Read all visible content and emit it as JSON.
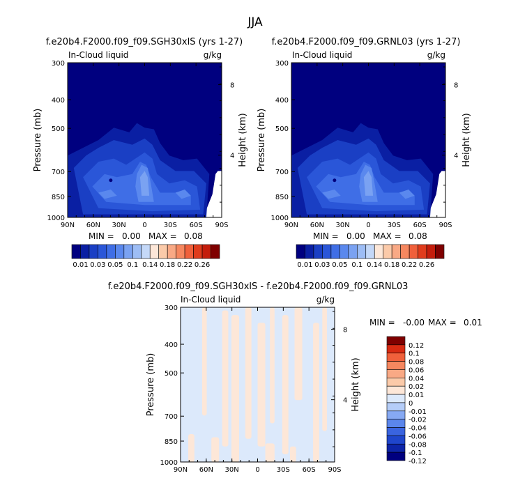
{
  "page_title": "JJA",
  "palettes": {
    "field": [
      "#00007f",
      "#0a1fa3",
      "#1a3fc4",
      "#2a56d8",
      "#3f6ee6",
      "#5a88ee",
      "#7aa2f2",
      "#9dbdf5",
      "#c4d8f8",
      "#fde7d8",
      "#fbcaa9",
      "#f9a985",
      "#f6875f",
      "#f0603b",
      "#e03c1c",
      "#c41d0c",
      "#7f0000"
    ],
    "diff": [
      "#00007f",
      "#0d25a8",
      "#1f46cc",
      "#3a64e0",
      "#5b86ec",
      "#86a9f3",
      "#b5cdf8",
      "#dce9fb",
      "#fde7d8",
      "#fbcaa9",
      "#f9a985",
      "#f6875f",
      "#f0603b",
      "#d82a12",
      "#7f0000"
    ]
  },
  "chart_data": [
    {
      "type": "heatmap",
      "title": "f.e20b4.F2000.f09_f09.SGH30xlS (yrs 1-27)",
      "left_string": "In-Cloud liquid",
      "right_string": "g/kg",
      "ylabel": "Pressure (mb)",
      "ylabel_right": "Height (km)",
      "x_ticks": [
        "90N",
        "60N",
        "30N",
        "0",
        "30S",
        "60S",
        "90S"
      ],
      "x_values": [
        90,
        60,
        30,
        0,
        -30,
        -60,
        -90
      ],
      "y_ticks": [
        "300",
        "400",
        "500",
        "700",
        "850",
        "1000"
      ],
      "y_values": [
        300,
        400,
        500,
        700,
        850,
        1000
      ],
      "y_right_ticks": [
        "8",
        "4"
      ],
      "ylim": [
        1000,
        300
      ],
      "min_label": "MIN =",
      "min_value": "0.00",
      "max_label": "MAX =",
      "max_value": "0.08",
      "colorbar_labels": [
        "0.01",
        "0.03",
        "0.05",
        "0.1",
        "0.14",
        "0.18",
        "0.22",
        "0.26"
      ],
      "colorbar_levels": [
        0.01,
        0.02,
        0.03,
        0.04,
        0.05,
        0.06,
        0.08,
        0.1,
        0.12,
        0.14,
        0.16,
        0.18,
        0.2,
        0.22,
        0.24,
        0.26
      ]
    },
    {
      "type": "heatmap",
      "title": "f.e20b4.F2000.f09_f09.GRNL03 (yrs 1-27)",
      "left_string": "In-Cloud liquid",
      "right_string": "g/kg",
      "ylabel": "Pressure (mb)",
      "ylabel_right": "Height (km)",
      "x_ticks": [
        "90N",
        "60N",
        "30N",
        "0",
        "30S",
        "60S",
        "90S"
      ],
      "x_values": [
        90,
        60,
        30,
        0,
        -30,
        -60,
        -90
      ],
      "y_ticks": [
        "300",
        "400",
        "500",
        "700",
        "850",
        "1000"
      ],
      "y_values": [
        300,
        400,
        500,
        700,
        850,
        1000
      ],
      "y_right_ticks": [
        "8",
        "4"
      ],
      "ylim": [
        1000,
        300
      ],
      "min_label": "MIN =",
      "min_value": "0.00",
      "max_label": "MAX =",
      "max_value": "0.08",
      "colorbar_labels": [
        "0.01",
        "0.03",
        "0.05",
        "0.1",
        "0.14",
        "0.18",
        "0.22",
        "0.26"
      ],
      "colorbar_levels": [
        0.01,
        0.02,
        0.03,
        0.04,
        0.05,
        0.06,
        0.08,
        0.1,
        0.12,
        0.14,
        0.16,
        0.18,
        0.2,
        0.22,
        0.24,
        0.26
      ]
    },
    {
      "type": "heatmap",
      "title": "f.e20b4.F2000.f09_f09.SGH30xlS - f.e20b4.F2000.f09_f09.GRNL03",
      "left_string": "In-Cloud liquid",
      "right_string": "g/kg",
      "ylabel": "Pressure (mb)",
      "ylabel_right": "Height (km)",
      "x_ticks": [
        "90N",
        "60N",
        "30N",
        "0",
        "30S",
        "60S",
        "90S"
      ],
      "x_values": [
        90,
        60,
        30,
        0,
        -30,
        -60,
        -90
      ],
      "y_ticks": [
        "300",
        "400",
        "500",
        "700",
        "850",
        "1000"
      ],
      "y_values": [
        300,
        400,
        500,
        700,
        850,
        1000
      ],
      "y_right_ticks": [
        "8",
        "4"
      ],
      "ylim": [
        1000,
        300
      ],
      "min_label": "MIN =",
      "min_value": "-0.00",
      "max_label": "MAX =",
      "max_value": "0.01",
      "colorbar_labels": [
        "0.12",
        "0.1",
        "0.08",
        "0.06",
        "0.04",
        "0.02",
        "0.01",
        "0",
        "-0.01",
        "-0.02",
        "-0.04",
        "-0.06",
        "-0.08",
        "-0.1",
        "-0.12"
      ],
      "colorbar_levels": [
        0.12,
        0.1,
        0.08,
        0.06,
        0.04,
        0.02,
        0.01,
        0,
        -0.01,
        -0.02,
        -0.04,
        -0.06,
        -0.08,
        -0.1,
        -0.12
      ]
    }
  ]
}
